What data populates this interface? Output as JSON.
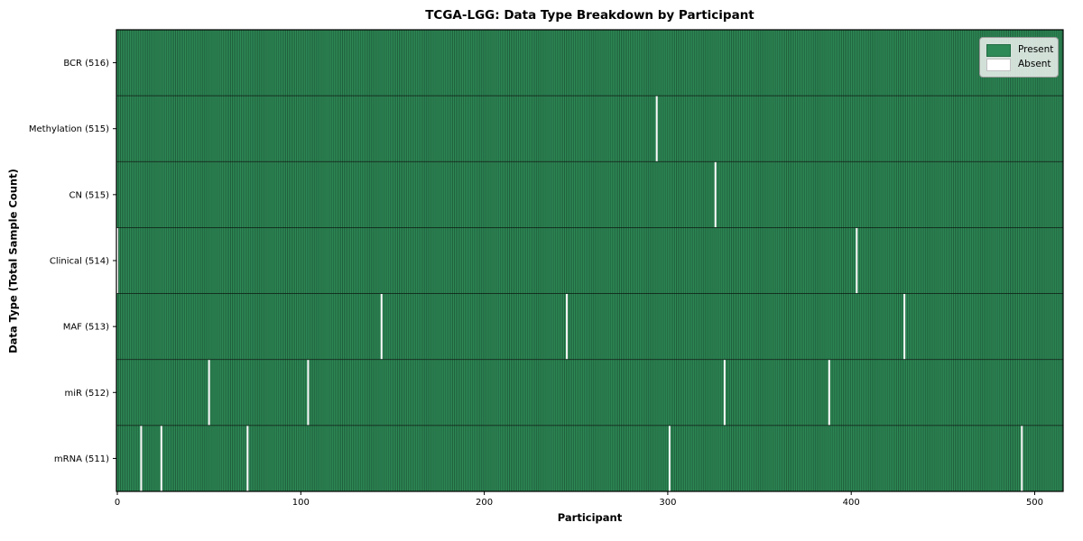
{
  "figure": {
    "title": "TCGA-LGG: Data Type Breakdown by Participant"
  },
  "axes": {
    "xlabel": "Participant",
    "ylabel": "Data Type (Total Sample Count)"
  },
  "legend": {
    "items": [
      {
        "label": "Present",
        "color": "#2e8b57"
      },
      {
        "label": "Absent",
        "color": "#ffffff"
      }
    ]
  },
  "colors": {
    "present": "#2e8b57",
    "absent": "#fcfcfc",
    "cell_edge": "rgba(0,0,0,0.5)",
    "spine": "#000000",
    "row_separator": "rgba(0,0,0,0.7)"
  },
  "chart_data": {
    "type": "heatmap",
    "title": "TCGA-LGG: Data Type Breakdown by Participant",
    "xlabel": "Participant",
    "ylabel": "Data Type (Total Sample Count)",
    "n_participants": 516,
    "x_ticks": [
      0,
      100,
      200,
      300,
      400,
      500
    ],
    "xlim": [
      0,
      516
    ],
    "grid": false,
    "legend_position": "upper right",
    "legend_entries": [
      "Present",
      "Absent"
    ],
    "value_encoding": {
      "present": 1,
      "absent": 0
    },
    "rows": [
      {
        "label": "BCR (516)",
        "data_type": "BCR",
        "sample_count": 516,
        "absent_participants": []
      },
      {
        "label": "Methylation (515)",
        "data_type": "Methylation",
        "sample_count": 515,
        "absent_participants": [
          294
        ]
      },
      {
        "label": "CN (515)",
        "data_type": "CN",
        "sample_count": 515,
        "absent_participants": [
          326
        ]
      },
      {
        "label": "Clinical (514)",
        "data_type": "Clinical",
        "sample_count": 514,
        "absent_participants": [
          0,
          403
        ]
      },
      {
        "label": "MAF (513)",
        "data_type": "MAF",
        "sample_count": 513,
        "absent_participants": [
          144,
          245,
          429
        ]
      },
      {
        "label": "miR (512)",
        "data_type": "miR",
        "sample_count": 512,
        "absent_participants": [
          50,
          104,
          331,
          388
        ]
      },
      {
        "label": "mRNA (511)",
        "data_type": "mRNA",
        "sample_count": 511,
        "absent_participants": [
          13,
          24,
          71,
          301,
          493
        ]
      }
    ]
  }
}
